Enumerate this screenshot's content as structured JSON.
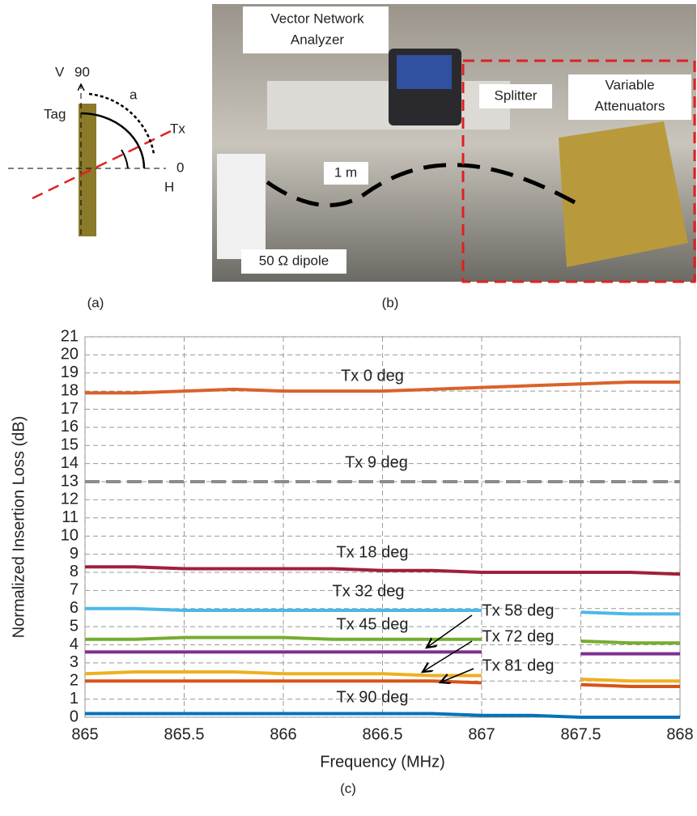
{
  "panel_labels": [
    "(a)",
    "(b)",
    "(c)"
  ],
  "diagram_a": {
    "v": "V",
    "deg90": "90",
    "tag": "Tag",
    "angle": "a",
    "tx": "Tx",
    "deg0": "0",
    "h": "H"
  },
  "photo_b": {
    "vna": [
      "Vector Network",
      "Analyzer"
    ],
    "splitter": "Splitter",
    "attenuators": [
      "Variable",
      "Attenuators"
    ],
    "distance": "1 m",
    "dipole": "50 Ω dipole"
  },
  "chart_data": {
    "type": "line",
    "xlabel": "Frequency (MHz)",
    "ylabel": "Normalized Insertion Loss (dB)",
    "x": [
      865,
      865.25,
      865.5,
      865.75,
      866,
      866.25,
      866.5,
      866.75,
      867,
      867.25,
      867.5,
      867.75,
      868
    ],
    "xlim": [
      865,
      868
    ],
    "xticks": [
      865,
      865.5,
      866,
      866.5,
      867,
      867.5,
      868
    ],
    "ylim": [
      0,
      21
    ],
    "yticks": [
      0,
      1,
      2,
      3,
      4,
      5,
      6,
      7,
      8,
      9,
      10,
      11,
      12,
      13,
      14,
      15,
      16,
      17,
      18,
      19,
      20,
      21
    ],
    "grid": true,
    "series": [
      {
        "name": "Tx 0 deg",
        "color": "#d9622b",
        "values": [
          17.9,
          17.9,
          18.0,
          18.1,
          18.0,
          18.0,
          18.0,
          18.1,
          18.2,
          18.3,
          18.4,
          18.5,
          18.5
        ]
      },
      {
        "name": "Tx 9 deg",
        "color": "#8c8c8c",
        "dashed": true,
        "values": [
          13,
          13,
          13,
          13,
          13,
          13,
          13,
          13,
          13,
          13,
          13,
          13,
          13
        ]
      },
      {
        "name": "Tx 18 deg",
        "color": "#a0203a",
        "values": [
          8.3,
          8.3,
          8.2,
          8.2,
          8.2,
          8.2,
          8.1,
          8.1,
          8.0,
          8.0,
          8.0,
          8.0,
          7.9
        ]
      },
      {
        "name": "Tx 32 deg",
        "color": "#4db8e8",
        "values": [
          6.0,
          6.0,
          5.9,
          5.9,
          5.9,
          5.9,
          5.9,
          5.9,
          5.9,
          null,
          5.8,
          5.7,
          5.7
        ]
      },
      {
        "name": "Tx 45 deg",
        "color": "#77ac30",
        "values": [
          4.3,
          4.3,
          4.4,
          4.4,
          4.4,
          4.3,
          4.3,
          4.3,
          4.3,
          null,
          4.2,
          4.1,
          4.1
        ]
      },
      {
        "name": "Tx 58 deg",
        "color": "#7e2f8e",
        "values": [
          3.6,
          3.6,
          3.6,
          3.6,
          3.6,
          3.6,
          3.6,
          3.6,
          3.6,
          null,
          3.5,
          3.5,
          3.5
        ]
      },
      {
        "name": "Tx 72 deg",
        "color": "#edb120",
        "values": [
          2.4,
          2.5,
          2.5,
          2.5,
          2.4,
          2.4,
          2.4,
          2.3,
          2.3,
          null,
          2.1,
          2.0,
          2.0
        ]
      },
      {
        "name": "Tx 81 deg",
        "color": "#d95319",
        "values": [
          2.0,
          2.0,
          2.0,
          2.0,
          2.0,
          2.0,
          2.0,
          2.0,
          1.9,
          null,
          1.8,
          1.7,
          1.7
        ]
      },
      {
        "name": "Tx 90 deg",
        "color": "#0072bd",
        "values": [
          0.2,
          0.2,
          0.2,
          0.2,
          0.2,
          0.2,
          0.2,
          0.2,
          0.1,
          0.1,
          0.0,
          0.0,
          0.0
        ]
      }
    ]
  }
}
